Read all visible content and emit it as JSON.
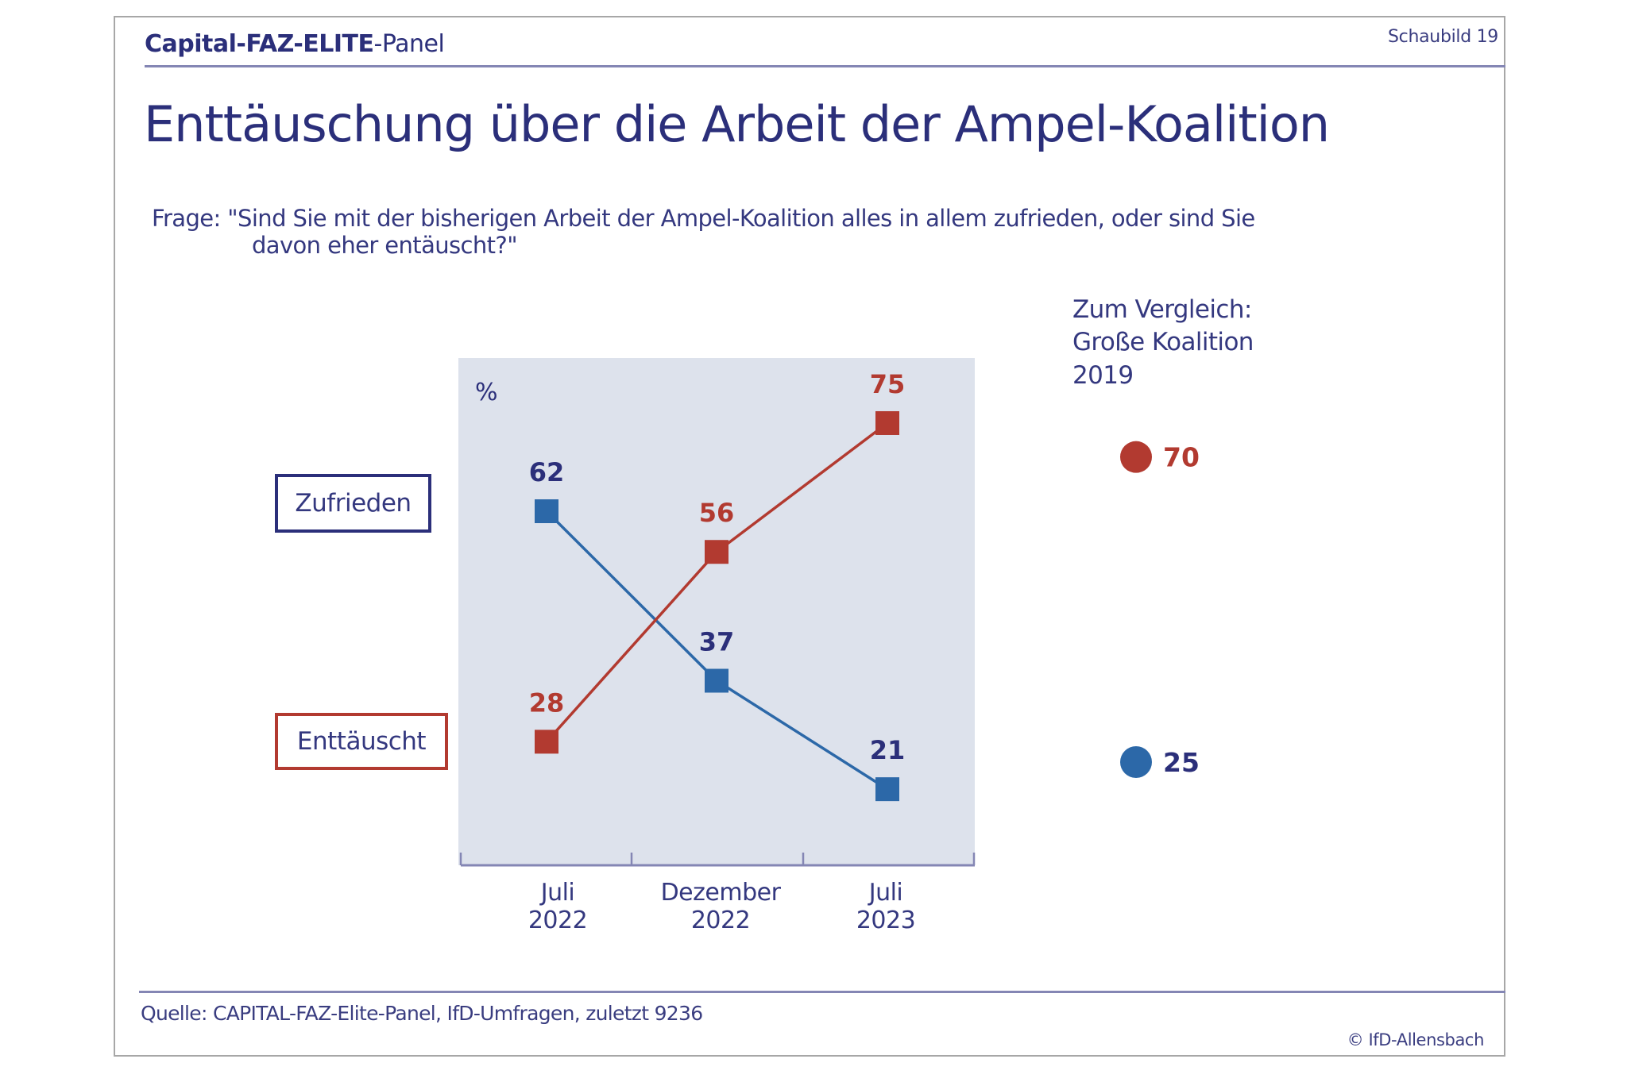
{
  "header": {
    "brand_parts": [
      {
        "text": "Capital-",
        "weight": "bold"
      },
      {
        "text": "FAZ-ELITE",
        "weight": "bold"
      },
      {
        "text": "-Panel",
        "weight": "normal"
      }
    ],
    "figure_label": "Schaubild  19"
  },
  "title": "Enttäuschung über die Arbeit der Ampel-Koalition",
  "question": {
    "line1": "Frage: \"Sind Sie mit der bisherigen Arbeit der Ampel-Koalition alles in allem zufrieden, oder sind Sie",
    "line2": "davon eher entäuscht?\""
  },
  "comparison": {
    "lines": [
      "Zum Vergleich:",
      "Große Koalition",
      "2019"
    ],
    "values": [
      {
        "series": "Enttäuscht",
        "value": 70,
        "label": "70"
      },
      {
        "series": "Zufrieden",
        "value": 25,
        "label": "25"
      }
    ]
  },
  "legend": [
    {
      "label": "Zufrieden",
      "series": "Zufrieden"
    },
    {
      "label": "Enttäuscht",
      "series": "Enttäuscht"
    }
  ],
  "colors": {
    "navy": "#2b2f7a",
    "blue": "#2c68a8",
    "red": "#b23a30",
    "plot_bg": "#dde2ec",
    "axis": "#8486b4"
  },
  "chart_data": {
    "type": "line",
    "title": "Enttäuschung über die Arbeit der Ampel-Koalition",
    "unit_label": "%",
    "xlabel": "",
    "ylabel": "%",
    "categories": [
      [
        "Juli",
        "2022"
      ],
      [
        "Dezember",
        "2022"
      ],
      [
        "Juli",
        "2023"
      ]
    ],
    "series": [
      {
        "name": "Zufrieden",
        "color": "#2c68a8",
        "label_color": "#2b2f7a",
        "values": [
          62,
          37,
          21
        ]
      },
      {
        "name": "Enttäuscht",
        "color": "#b23a30",
        "label_color": "#b23a30",
        "values": [
          28,
          56,
          75
        ]
      }
    ],
    "comparison": {
      "label": "Zum Vergleich: Große Koalition 2019",
      "values": {
        "Enttäuscht": 70,
        "Zufrieden": 25
      }
    },
    "grid": false,
    "legend": "left"
  },
  "footer": {
    "source": "Quelle: CAPITAL-FAZ-Elite-Panel, IfD-Umfragen, zuletzt 9236",
    "copyright": "© IfD-Allensbach"
  }
}
